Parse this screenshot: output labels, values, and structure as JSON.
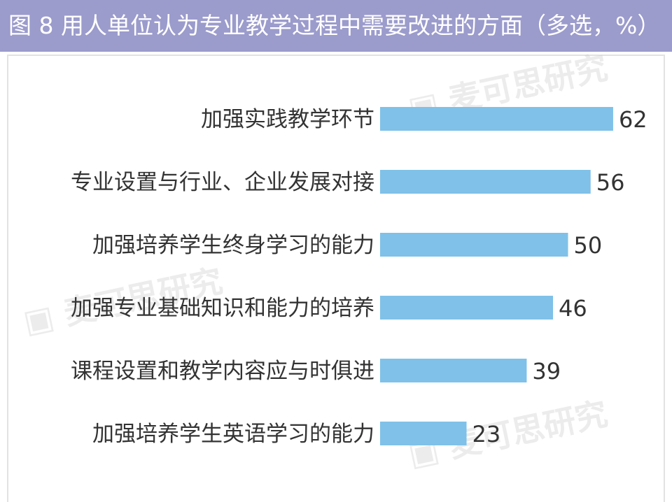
{
  "title": "图 8  用人单位认为专业教学过程中需要改进的方面（多选，%）",
  "watermark": "麦可思研究",
  "colors": {
    "header": "#9b9bcc",
    "bar": "#7fc1e8",
    "text": "#333333"
  },
  "chart_data": {
    "type": "bar",
    "orientation": "horizontal",
    "title": "图 8  用人单位认为专业教学过程中需要改进的方面（多选，%）",
    "categories": [
      "加强实践教学环节",
      "专业设置与行业、企业发展对接",
      "加强培养学生终身学习的能力",
      "加强专业基础知识和能力的培养",
      "课程设置和教学内容应与时俱进",
      "加强培养学生英语学习的能力"
    ],
    "values": [
      62,
      56,
      50,
      46,
      39,
      23
    ],
    "data_labels": [
      "62",
      "56",
      "50",
      "46",
      "39",
      "23"
    ],
    "unit": "%",
    "grid": false,
    "legend": "none"
  }
}
